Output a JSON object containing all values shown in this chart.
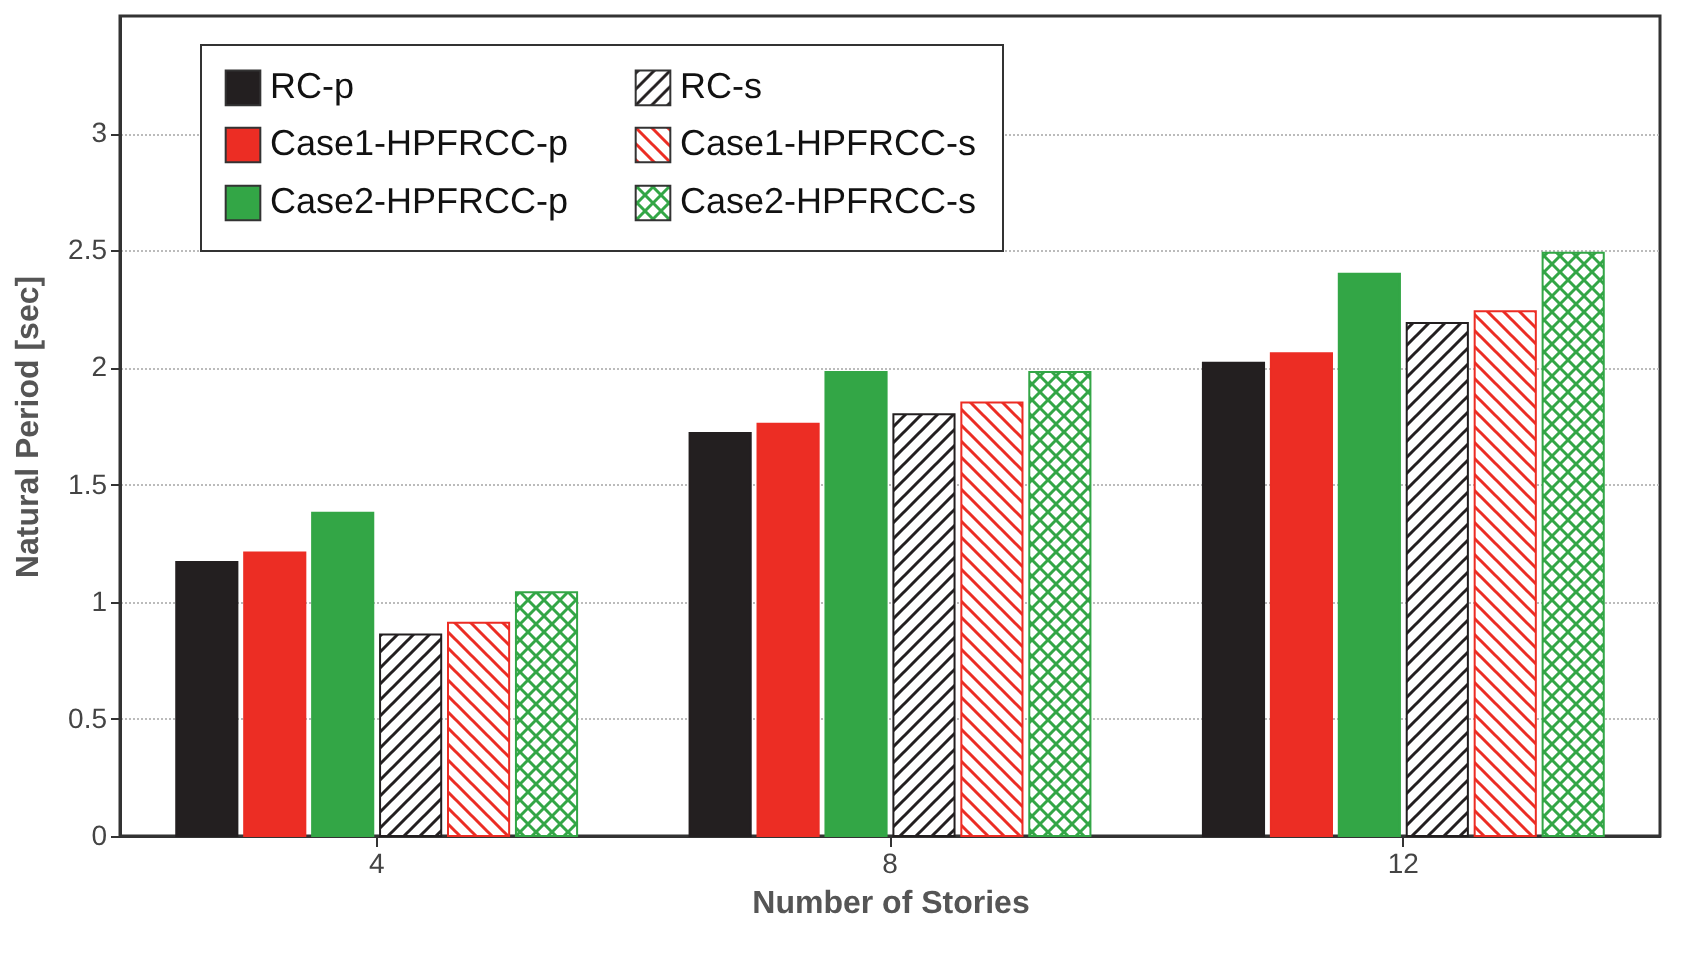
{
  "chart_data": {
    "type": "bar",
    "xlabel": "Number of Stories",
    "ylabel": "Natural Period [sec]",
    "categories": [
      "4",
      "8",
      "12"
    ],
    "series": [
      {
        "name": "RC-p",
        "color": "#231f20",
        "values": [
          1.17,
          1.72,
          2.02
        ]
      },
      {
        "name": "Case1-HPFRCC-p",
        "color": "#ec2d24",
        "values": [
          1.21,
          1.76,
          2.06
        ]
      },
      {
        "name": "Case2-HPFRCC-p",
        "color": "#33a646",
        "values": [
          1.38,
          1.98,
          2.4
        ]
      },
      {
        "name": "RC-s",
        "color": "#231f20",
        "values": [
          0.86,
          1.8,
          2.19
        ]
      },
      {
        "name": "Case1-HPFRCC-s",
        "color": "#ec2d24",
        "values": [
          0.91,
          1.85,
          2.24
        ]
      },
      {
        "name": "Case2-HPFRCC-s",
        "color": "#33a646",
        "values": [
          1.04,
          1.98,
          2.49
        ]
      }
    ],
    "ylim": [
      0,
      3.5
    ],
    "yticks": [
      0,
      0.5,
      1,
      1.5,
      2,
      2.5,
      3
    ],
    "grid": "y",
    "legend": "top left"
  }
}
